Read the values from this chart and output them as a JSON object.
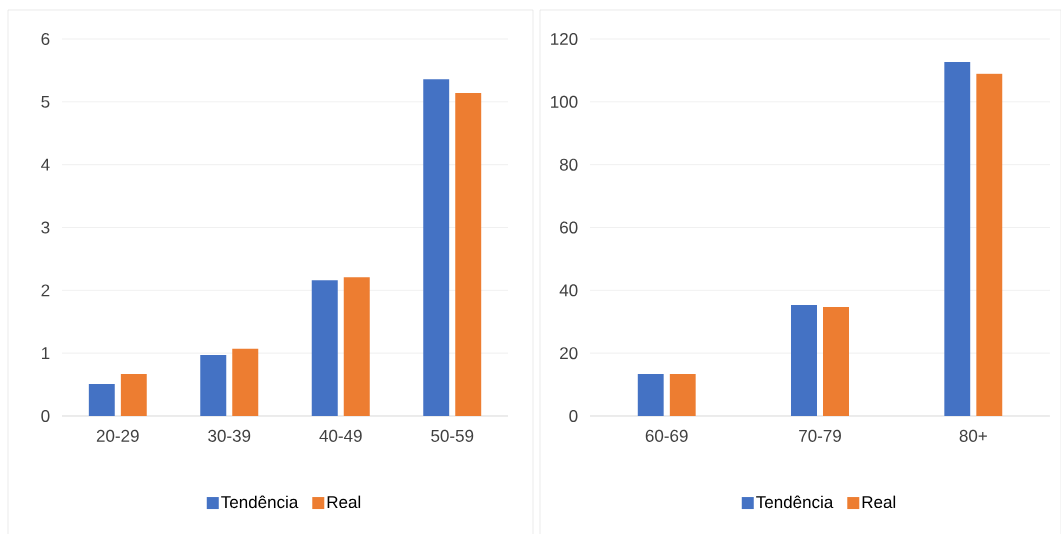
{
  "chart_data": [
    {
      "type": "bar",
      "categories": [
        "20-29",
        "30-39",
        "40-49",
        "50-59"
      ],
      "series": [
        {
          "name": "Tendência",
          "color": "#4472c4",
          "values": [
            0.51,
            0.97,
            2.16,
            5.36
          ]
        },
        {
          "name": "Real",
          "color": "#ed7d31",
          "values": [
            0.67,
            1.07,
            2.21,
            5.14
          ]
        }
      ],
      "ylim": [
        0,
        6
      ],
      "yticks": [
        0,
        1,
        2,
        3,
        4,
        5,
        6
      ],
      "grid": "y",
      "legend": "bottom"
    },
    {
      "type": "bar",
      "categories": [
        "60-69",
        "70-79",
        "80+"
      ],
      "series": [
        {
          "name": "Tendência",
          "color": "#4472c4",
          "values": [
            13.4,
            35.3,
            112.7
          ]
        },
        {
          "name": "Real",
          "color": "#ed7d31",
          "values": [
            13.4,
            34.7,
            108.9
          ]
        }
      ],
      "ylim": [
        0,
        120
      ],
      "yticks": [
        0,
        20,
        40,
        60,
        80,
        100,
        120
      ],
      "grid": "y",
      "legend": "bottom"
    }
  ]
}
